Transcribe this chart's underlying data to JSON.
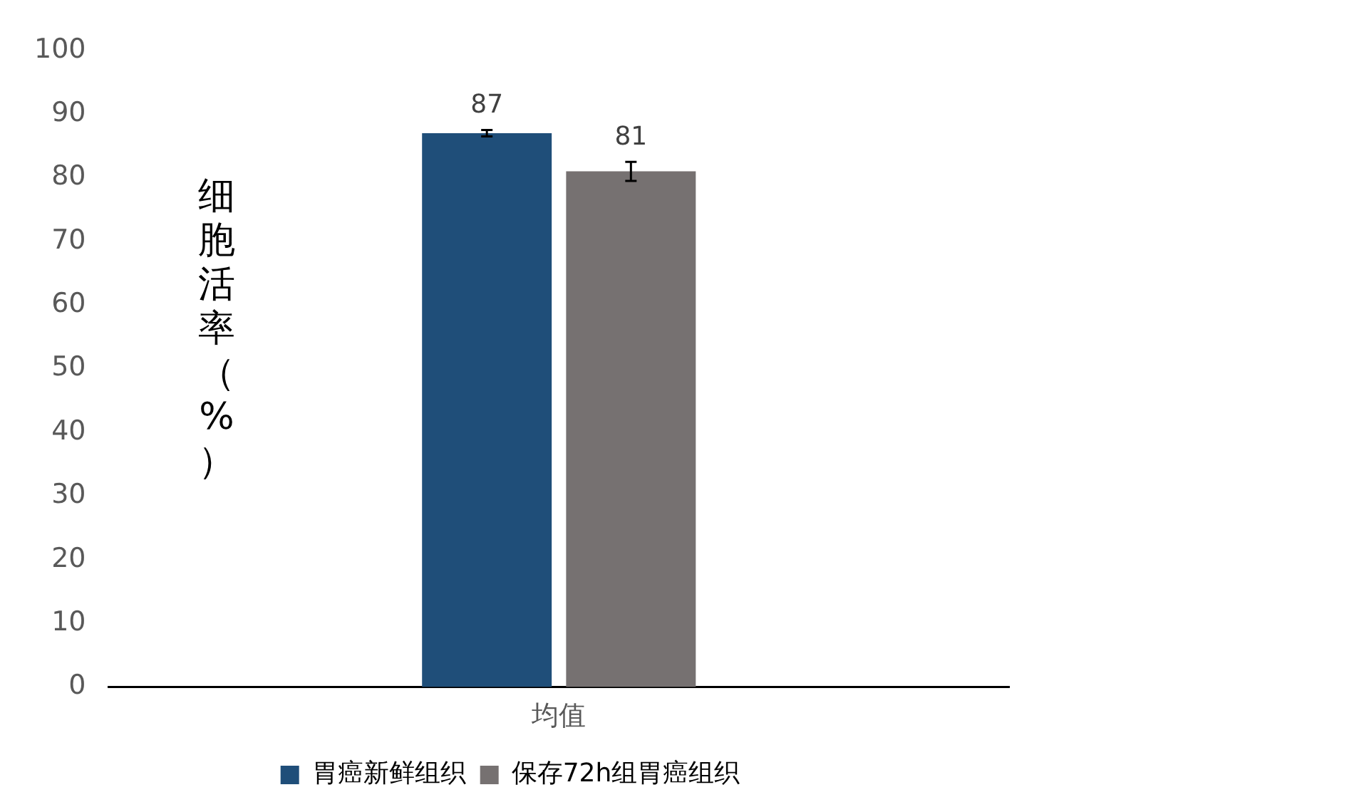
{
  "chart_data": {
    "type": "bar",
    "ylabel": "细胞活率（%）",
    "categories": [
      "均值"
    ],
    "series": [
      {
        "name": "胃癌新鲜组织",
        "color": "#1f4e79",
        "values": [
          87
        ],
        "errors": [
          0.5
        ]
      },
      {
        "name": "保存72h组胃癌组织",
        "color": "#767171",
        "values": [
          81
        ],
        "errors": [
          1.5
        ]
      }
    ],
    "ylim": [
      0,
      100
    ],
    "yticks": [
      0,
      10,
      20,
      30,
      40,
      50,
      60,
      70,
      80,
      90,
      100
    ],
    "grid": false,
    "legend": "bottom",
    "data_labels": true
  }
}
